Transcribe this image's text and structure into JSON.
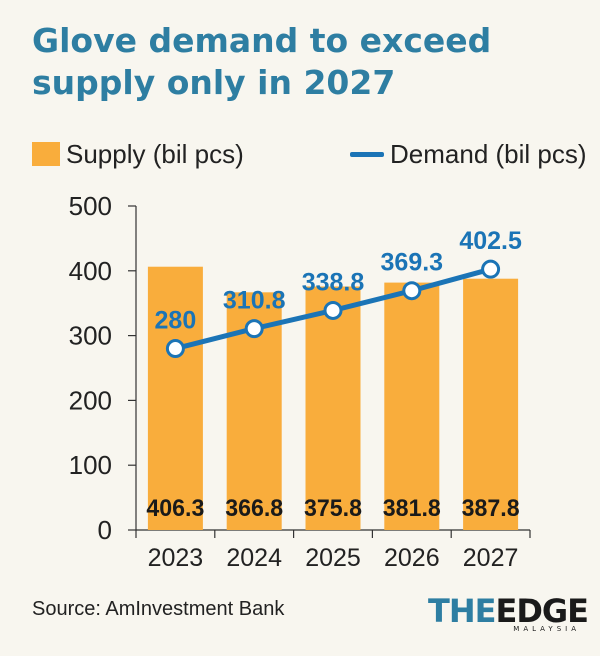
{
  "header": {
    "title": "Glove demand to exceed supply only in 2027"
  },
  "legend": {
    "supply_label": "Supply (bil pcs)",
    "demand_label": "Demand (bil pcs)"
  },
  "chart_data": {
    "type": "bar",
    "title": "Glove demand to exceed supply only in 2027",
    "categories": [
      "2023",
      "2024",
      "2025",
      "2026",
      "2027"
    ],
    "series": [
      {
        "name": "Supply (bil pcs)",
        "type": "bar",
        "values": [
          406.3,
          366.8,
          375.8,
          381.8,
          387.8
        ],
        "labels": [
          "406.3",
          "366.8",
          "375.8",
          "381.8",
          "387.8"
        ]
      },
      {
        "name": "Demand (bil pcs)",
        "type": "line",
        "values": [
          280,
          310.8,
          338.8,
          369.3,
          402.5
        ],
        "labels": [
          "280",
          "310.8",
          "338.8",
          "369.3",
          "402.5"
        ]
      }
    ],
    "ylim": [
      0,
      500
    ],
    "yticks": [
      "0",
      "100",
      "200",
      "300",
      "400",
      "500"
    ],
    "grid": false,
    "legend_position": "top",
    "colors": {
      "supply": "#f9ad3c",
      "demand": "#1b74b6",
      "demand_label": "#1b74b6"
    }
  },
  "footer": {
    "source": "Source: AmInvestment Bank",
    "logo_the": "THE",
    "logo_edge": "EDGE",
    "logo_sub": "MALAYSIA"
  }
}
